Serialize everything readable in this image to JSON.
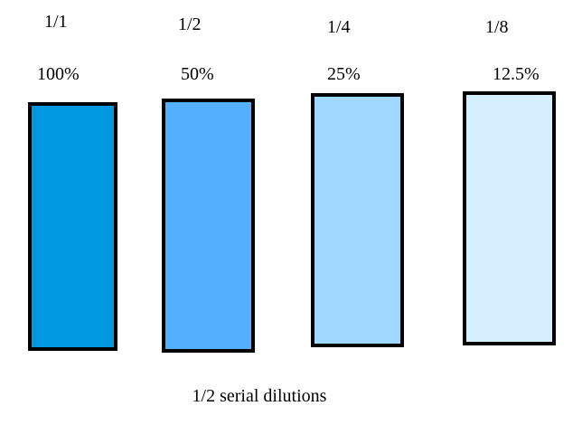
{
  "dilutions": [
    {
      "fraction": "1/1",
      "percent": "100%",
      "color": "#0099e0"
    },
    {
      "fraction": "1/2",
      "percent": "50%",
      "color": "#55afff"
    },
    {
      "fraction": "1/4",
      "percent": "25%",
      "color": "#9fd9ff"
    },
    {
      "fraction": "1/8",
      "percent": "12.5%",
      "color": "#d6efff"
    }
  ],
  "caption": "1/2 serial dilutions"
}
